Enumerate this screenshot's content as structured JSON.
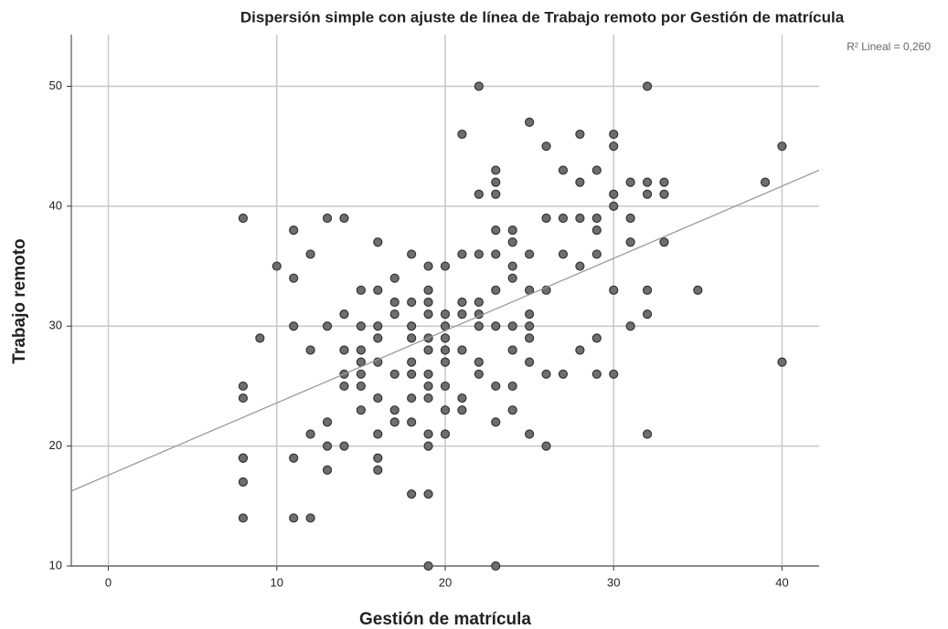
{
  "chart_data": {
    "type": "scatter",
    "title": "Dispersión simple con ajuste de línea de Trabajo remoto por Gestión de matrícula",
    "xlabel": "Gestión de matrícula",
    "ylabel": "Trabajo remoto",
    "annotation": "R² Lineal = 0,260",
    "color": "#6e6e6e",
    "x": [
      8,
      8,
      8,
      8,
      8,
      8,
      8,
      9,
      10,
      11,
      11,
      11,
      11,
      11,
      12,
      12,
      12,
      12,
      13,
      13,
      13,
      13,
      13,
      14,
      14,
      14,
      14,
      14,
      14,
      15,
      15,
      15,
      15,
      15,
      15,
      15,
      16,
      16,
      16,
      16,
      16,
      16,
      16,
      16,
      16,
      17,
      17,
      17,
      17,
      17,
      17,
      18,
      18,
      18,
      18,
      18,
      18,
      18,
      18,
      18,
      19,
      19,
      19,
      19,
      19,
      19,
      19,
      19,
      19,
      19,
      19,
      19,
      19,
      20,
      20,
      20,
      20,
      20,
      20,
      20,
      20,
      20,
      21,
      21,
      21,
      21,
      21,
      21,
      21,
      22,
      22,
      22,
      22,
      22,
      22,
      22,
      22,
      23,
      23,
      23,
      23,
      23,
      23,
      23,
      23,
      23,
      23,
      24,
      24,
      24,
      24,
      24,
      24,
      24,
      24,
      25,
      25,
      25,
      25,
      25,
      25,
      25,
      25,
      26,
      26,
      26,
      26,
      26,
      27,
      27,
      27,
      27,
      28,
      28,
      28,
      28,
      28,
      29,
      29,
      29,
      29,
      29,
      29,
      30,
      30,
      30,
      30,
      30,
      30,
      31,
      31,
      31,
      31,
      32,
      32,
      32,
      32,
      32,
      32,
      33,
      33,
      33,
      35,
      39,
      40,
      40
    ],
    "values": [
      39,
      25,
      24,
      19,
      19,
      17,
      14,
      29,
      35,
      38,
      34,
      30,
      19,
      14,
      36,
      28,
      21,
      14,
      39,
      30,
      22,
      20,
      18,
      39,
      31,
      28,
      26,
      25,
      20,
      33,
      30,
      28,
      27,
      26,
      25,
      23,
      37,
      33,
      30,
      29,
      27,
      24,
      21,
      19,
      18,
      34,
      32,
      31,
      26,
      23,
      22,
      36,
      32,
      30,
      29,
      27,
      26,
      24,
      22,
      16,
      35,
      33,
      32,
      31,
      29,
      28,
      26,
      25,
      24,
      21,
      20,
      16,
      10,
      35,
      31,
      30,
      29,
      28,
      27,
      25,
      23,
      21,
      46,
      36,
      32,
      31,
      28,
      24,
      23,
      50,
      41,
      36,
      32,
      31,
      30,
      27,
      26,
      43,
      42,
      41,
      38,
      36,
      33,
      30,
      25,
      22,
      10,
      38,
      37,
      35,
      34,
      30,
      28,
      25,
      23,
      47,
      36,
      33,
      31,
      30,
      29,
      27,
      21,
      45,
      39,
      33,
      26,
      20,
      43,
      39,
      36,
      26,
      46,
      42,
      39,
      35,
      28,
      43,
      39,
      38,
      36,
      29,
      26,
      46,
      45,
      41,
      40,
      33,
      26,
      42,
      39,
      37,
      30,
      50,
      42,
      41,
      33,
      31,
      21,
      42,
      41,
      37,
      33,
      42,
      45,
      27
    ],
    "fit_line": {
      "x": [
        -2.2,
        42.2
      ],
      "y": [
        16.25,
        43.0
      ],
      "color": "#999999"
    },
    "xlim": [
      -2.2,
      42.2
    ],
    "ylim": [
      10,
      54.3
    ],
    "xticks": [
      0,
      10,
      20,
      30,
      40
    ],
    "yticks": [
      10,
      20,
      30,
      40,
      50
    ],
    "grid": true
  }
}
